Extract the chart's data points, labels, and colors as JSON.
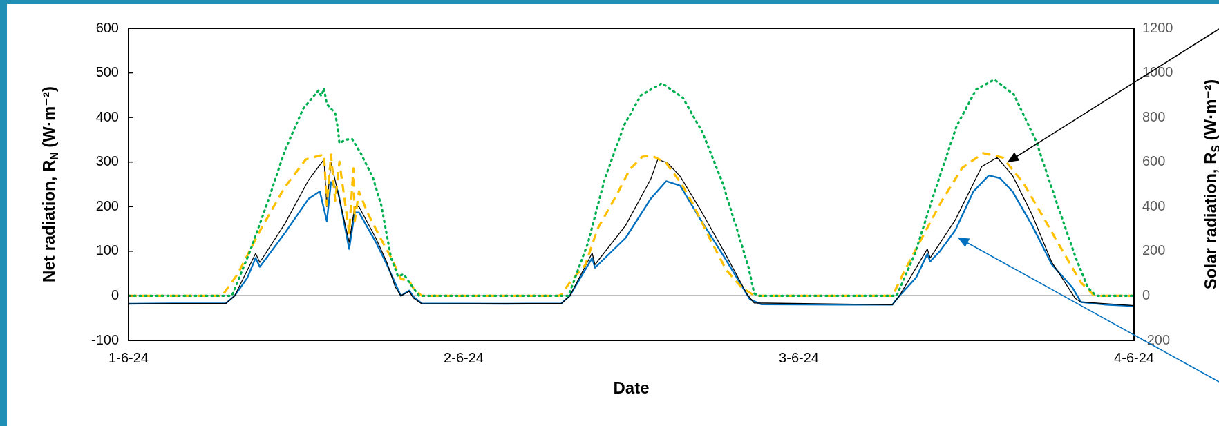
{
  "chart_data": {
    "type": "line",
    "xlabel": "Date",
    "ylabel": "Net radiation, R$_{N}$ (W·m⁻²)",
    "y2label": "Solar radiation, R$_{S}$ (W·m⁻²)",
    "xlim": [
      "--06-01",
      "--06-04"
    ],
    "xticks": [
      {
        "value": "--06-01",
        "label": "1-6-24"
      },
      {
        "value": "--06-02",
        "label": "2-6-24"
      },
      {
        "value": "--06-03",
        "label": "3-6-24"
      },
      {
        "value": "--06-04",
        "label": "4-6-24"
      }
    ],
    "ylim": [
      -100,
      600
    ],
    "yticks": [
      -100,
      0,
      100,
      200,
      300,
      400,
      500,
      600
    ],
    "y2lim": [
      -200,
      1200
    ],
    "y2ticks": [
      -200,
      0,
      200,
      400,
      600,
      800,
      1000,
      1200
    ],
    "legend": false,
    "marker": "none",
    "ref_lines": [
      {
        "axis": "y",
        "value": 0,
        "color": "#000000"
      }
    ],
    "series": [
      {
        "color": "#00b050",
        "axis": "y2",
        "line_style": "dotted",
        "x": [
          "--06-01T00:00",
          "--06-01T07:24",
          "--06-01T08:42",
          "--06-01T10:00",
          "--06-01T11:12",
          "--06-01T12:30",
          "--06-01T13:36",
          "--06-01T13:48",
          "--06-01T14:00",
          "--06-01T14:12",
          "--06-01T14:48",
          "--06-01T15:00",
          "--06-01T15:06",
          "--06-01T15:30",
          "--06-01T16:00",
          "--06-01T16:36",
          "--06-01T17:30",
          "--06-01T18:06",
          "--06-01T18:48",
          "--06-01T19:18",
          "--06-01T19:42",
          "--06-01T20:24",
          "--06-01T20:48",
          "--06-02T07:30",
          "--06-02T08:54",
          "--06-02T10:06",
          "--06-02T11:30",
          "--06-02T12:42",
          "--06-02T14:12",
          "--06-02T15:42",
          "--06-02T17:06",
          "--06-02T18:30",
          "--06-02T19:36",
          "--06-02T20:24",
          "--06-02T20:48",
          "--06-02T21:06",
          "--06-03T07:00",
          "--06-03T08:18",
          "--06-03T09:48",
          "--06-03T11:18",
          "--06-03T12:42",
          "--06-03T14:00",
          "--06-03T15:24",
          "--06-03T17:00",
          "--06-03T18:30",
          "--06-03T19:48",
          "--06-03T20:42",
          "--06-03T21:18",
          "--06-04T00:00"
        ],
        "values": [
          0,
          0,
          200,
          427,
          653,
          839,
          921,
          896,
          930,
          860,
          819,
          746,
          684,
          700,
          704,
          643,
          530,
          406,
          170,
          87,
          97,
          35,
          0,
          0,
          237,
          524,
          767,
          900,
          954,
          888,
          733,
          513,
          292,
          127,
          11,
          0,
          0,
          187,
          481,
          762,
          926,
          970,
          903,
          692,
          411,
          176,
          36,
          0,
          0
        ]
      },
      {
        "color": "#ffc000",
        "line_style": "dashed",
        "x": [
          "--06-01T00:00",
          "--06-01T06:42",
          "--06-01T07:48",
          "--06-01T09:30",
          "--06-01T11:12",
          "--06-01T12:42",
          "--06-01T14:00",
          "--06-01T14:12",
          "--06-01T14:30",
          "--06-01T14:48",
          "--06-01T15:06",
          "--06-01T15:48",
          "--06-01T16:06",
          "--06-01T16:12",
          "--06-01T16:30",
          "--06-01T17:06",
          "--06-01T18:06",
          "--06-01T18:54",
          "--06-01T19:30",
          "--06-01T20:06",
          "--06-01T20:24",
          "--06-01T21:00",
          "--06-02T06:48",
          "--06-02T07:00",
          "--06-02T07:36",
          "--06-02T08:42",
          "--06-02T09:36",
          "--06-02T11:00",
          "--06-02T11:54",
          "--06-02T12:48",
          "--06-02T13:30",
          "--06-02T14:30",
          "--06-02T15:36",
          "--06-02T16:24",
          "--06-02T17:36",
          "--06-02T18:48",
          "--06-02T19:54",
          "--06-02T20:42",
          "--06-02T21:00",
          "--06-03T06:36",
          "--06-03T06:48",
          "--06-03T07:36",
          "--06-03T08:54",
          "--06-03T10:12",
          "--06-03T11:42",
          "--06-03T13:12",
          "--06-03T14:36",
          "--06-03T16:06",
          "--06-03T17:24",
          "--06-03T18:54",
          "--06-03T20:12",
          "--06-03T21:06",
          "--06-03T21:30",
          "--06-04T00:00"
        ],
        "values": [
          0,
          0,
          48,
          151,
          244,
          306,
          317,
          203,
          317,
          213,
          301,
          141,
          286,
          167,
          234,
          187,
          126,
          80,
          38,
          33,
          17,
          0,
          0,
          3,
          30,
          69,
          151,
          229,
          284,
          312,
          314,
          298,
          251,
          207,
          130,
          58,
          19,
          3,
          0,
          0,
          6,
          58,
          135,
          211,
          287,
          320,
          310,
          252,
          182,
          100,
          30,
          2,
          0,
          0
        ]
      },
      {
        "color": "#000000",
        "line_style": "solid",
        "x": [
          "--06-01T00:00",
          "--06-01T06:58",
          "--06-01T07:36",
          "--06-01T09:06",
          "--06-01T09:24",
          "--06-01T11:12",
          "--06-01T12:54",
          "--06-01T14:00",
          "--06-01T14:12",
          "--06-01T14:30",
          "--06-01T15:48",
          "--06-01T16:12",
          "--06-01T16:30",
          "--06-01T17:42",
          "--06-01T18:30",
          "--06-01T19:06",
          "--06-01T19:30",
          "--06-01T20:06",
          "--06-01T20:24",
          "--06-01T21:00",
          "--06-02T07:00",
          "--06-02T07:36",
          "--06-02T09:12",
          "--06-02T09:24",
          "--06-02T11:36",
          "--06-02T13:24",
          "--06-02T13:54",
          "--06-02T14:36",
          "--06-02T15:30",
          "--06-02T16:54",
          "--06-02T18:42",
          "--06-02T20:18",
          "--06-02T20:48",
          "--06-03T06:42",
          "--06-03T07:12",
          "--06-03T09:12",
          "--06-03T09:24",
          "--06-03T11:12",
          "--06-03T12:30",
          "--06-03T13:06",
          "--06-03T14:12",
          "--06-03T15:18",
          "--06-03T16:42",
          "--06-03T18:06",
          "--06-03T19:48",
          "--06-03T20:12",
          "--06-04T00:00"
        ],
        "values": [
          -18,
          -17,
          0,
          95,
          75,
          162,
          260,
          306,
          200,
          300,
          120,
          200,
          200,
          130,
          75,
          20,
          0,
          10,
          -5,
          -18,
          -17,
          0,
          96,
          70,
          158,
          262,
          306,
          298,
          268,
          196,
          96,
          3,
          -16,
          -20,
          0,
          105,
          85,
          170,
          252,
          290,
          310,
          270,
          182,
          76,
          -6,
          -14,
          -22
        ]
      },
      {
        "color": "#0070c0",
        "line_style": "solid",
        "x": [
          "--06-01T00:00",
          "--06-01T03:00",
          "--06-01T06:58",
          "--06-01T07:36",
          "--06-01T08:30",
          "--06-01T09:06",
          "--06-01T09:24",
          "--06-01T11:12",
          "--06-01T12:54",
          "--06-01T13:42",
          "--06-01T14:12",
          "--06-01T14:30",
          "--06-01T15:00",
          "--06-01T15:48",
          "--06-01T16:12",
          "--06-01T16:30",
          "--06-01T17:42",
          "--06-01T18:30",
          "--06-01T19:06",
          "--06-01T19:30",
          "--06-01T20:06",
          "--06-01T20:24",
          "--06-01T21:00",
          "--06-02T03:00",
          "--06-02T07:00",
          "--06-02T07:36",
          "--06-02T09:12",
          "--06-02T09:24",
          "--06-02T11:36",
          "--06-02T13:24",
          "--06-02T14:30",
          "--06-02T15:30",
          "--06-02T16:54",
          "--06-02T18:42",
          "--06-02T20:30",
          "--06-02T21:18",
          "--06-03T03:00",
          "--06-03T06:42",
          "--06-03T07:12",
          "--06-03T08:24",
          "--06-03T09:12",
          "--06-03T09:24",
          "--06-03T10:06",
          "--06-03T11:12",
          "--06-03T12:30",
          "--06-03T13:36",
          "--06-03T14:24",
          "--06-03T15:18",
          "--06-03T16:42",
          "--06-03T18:06",
          "--06-03T19:36",
          "--06-03T20:12",
          "--06-03T22:00",
          "--06-04T00:00"
        ],
        "values": [
          -18,
          -17,
          -17,
          0,
          40,
          85,
          65,
          141,
          218,
          234,
          167,
          255,
          235,
          105,
          187,
          187,
          121,
          70,
          28,
          0,
          12,
          -2,
          -17,
          -18,
          -17,
          0,
          85,
          63,
          130,
          218,
          257,
          247,
          174,
          85,
          -8,
          -19,
          -20,
          -20,
          0,
          41,
          94,
          77,
          100,
          147,
          234,
          270,
          264,
          234,
          158,
          71,
          18,
          -14,
          -20,
          -23
        ]
      }
    ]
  }
}
